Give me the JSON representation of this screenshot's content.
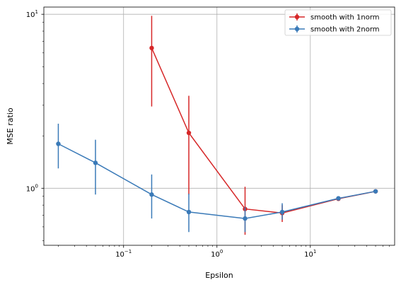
{
  "chart_data": {
    "type": "line",
    "xlabel": "Epsilon",
    "ylabel": "MSE ratio",
    "xscale": "log",
    "yscale": "log",
    "xlim": [
      0.014,
      80
    ],
    "ylim": [
      0.47,
      11
    ],
    "grid": true,
    "legend_position": "top-right",
    "x_ticks": [
      {
        "value": 0.1,
        "base": "10",
        "exp": "−1"
      },
      {
        "value": 1,
        "base": "10",
        "exp": "0"
      },
      {
        "value": 10,
        "base": "10",
        "exp": "1"
      }
    ],
    "y_ticks": [
      {
        "value": 1,
        "base": "10",
        "exp": "0"
      },
      {
        "value": 10,
        "base": "10",
        "exp": "1"
      }
    ],
    "series": [
      {
        "name": "smooth with 1norm",
        "color": "#d62728",
        "points": [
          {
            "x": 0.2,
            "y": 6.4,
            "lo": 2.95,
            "hi": 9.8
          },
          {
            "x": 0.5,
            "y": 2.08,
            "lo": 0.92,
            "hi": 3.4
          },
          {
            "x": 2,
            "y": 0.76,
            "lo": 0.54,
            "hi": 1.02
          },
          {
            "x": 5,
            "y": 0.72,
            "lo": 0.64,
            "hi": 0.8
          },
          {
            "x": 20,
            "y": 0.87,
            "lo": 0.86,
            "hi": 0.89
          },
          {
            "x": 50,
            "y": 0.96,
            "lo": 0.95,
            "hi": 0.97
          }
        ]
      },
      {
        "name": "smooth with 2norm",
        "color": "#3a7ab8",
        "points": [
          {
            "x": 0.02,
            "y": 1.8,
            "lo": 1.3,
            "hi": 2.35
          },
          {
            "x": 0.05,
            "y": 1.4,
            "lo": 0.92,
            "hi": 1.9
          },
          {
            "x": 0.2,
            "y": 0.92,
            "lo": 0.67,
            "hi": 1.2
          },
          {
            "x": 0.5,
            "y": 0.73,
            "lo": 0.56,
            "hi": 0.93
          },
          {
            "x": 2,
            "y": 0.67,
            "lo": 0.56,
            "hi": 0.78
          },
          {
            "x": 5,
            "y": 0.73,
            "lo": 0.66,
            "hi": 0.82
          },
          {
            "x": 20,
            "y": 0.875,
            "lo": 0.86,
            "hi": 0.89
          },
          {
            "x": 50,
            "y": 0.96,
            "lo": 0.95,
            "hi": 0.97
          }
        ]
      }
    ]
  }
}
